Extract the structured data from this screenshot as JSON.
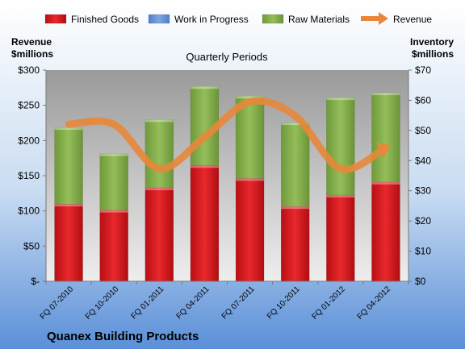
{
  "chart_data": {
    "type": "bar",
    "title": "Quarterly Periods",
    "company": "Quanex Building Products",
    "left_axis_label": [
      "Revenue",
      "$millions"
    ],
    "right_axis_label": [
      "Inventory",
      "$millions"
    ],
    "categories": [
      "FQ 07-2010",
      "FQ 10-2010",
      "FQ 01-2011",
      "FQ 04-2011",
      "FQ 07-2011",
      "FQ 10-2011",
      "FQ 01-2012",
      "FQ 04-2012"
    ],
    "y_left": {
      "min": 0,
      "max": 300,
      "step": 50,
      "tick_labels": [
        "$-",
        "$50",
        "$100",
        "$150",
        "$200",
        "$250",
        "$300"
      ]
    },
    "y_right": {
      "min": 0,
      "max": 70,
      "step": 10,
      "tick_labels": [
        "$0",
        "$10",
        "$20",
        "$30",
        "$40",
        "$50",
        "$60",
        "$70"
      ]
    },
    "legend_position": "top",
    "legend": [
      "Finished Goods",
      "Work in Progress",
      "Raw Materials",
      "Revenue"
    ],
    "series": [
      {
        "name": "Finished Goods",
        "axis": "right",
        "stacked": true,
        "color": "#e0171c",
        "values": [
          25.6,
          23.6,
          31.0,
          38.4,
          34.1,
          24.8,
          28.6,
          32.9
        ]
      },
      {
        "name": "Work in Progress",
        "axis": "right",
        "stacked": true,
        "color": "#6f97d6",
        "values": [
          0,
          0,
          0,
          0,
          0,
          0,
          0,
          0
        ]
      },
      {
        "name": "Raw Materials",
        "axis": "right",
        "stacked": true,
        "color": "#87b04e",
        "values": [
          25.4,
          18.7,
          22.6,
          26.2,
          27.3,
          27.8,
          32.3,
          29.6
        ]
      },
      {
        "name": "Revenue",
        "axis": "left",
        "type": "line",
        "color": "#e8873a",
        "values": [
          223,
          223,
          160,
          205,
          255,
          235,
          160,
          190
        ]
      }
    ]
  }
}
